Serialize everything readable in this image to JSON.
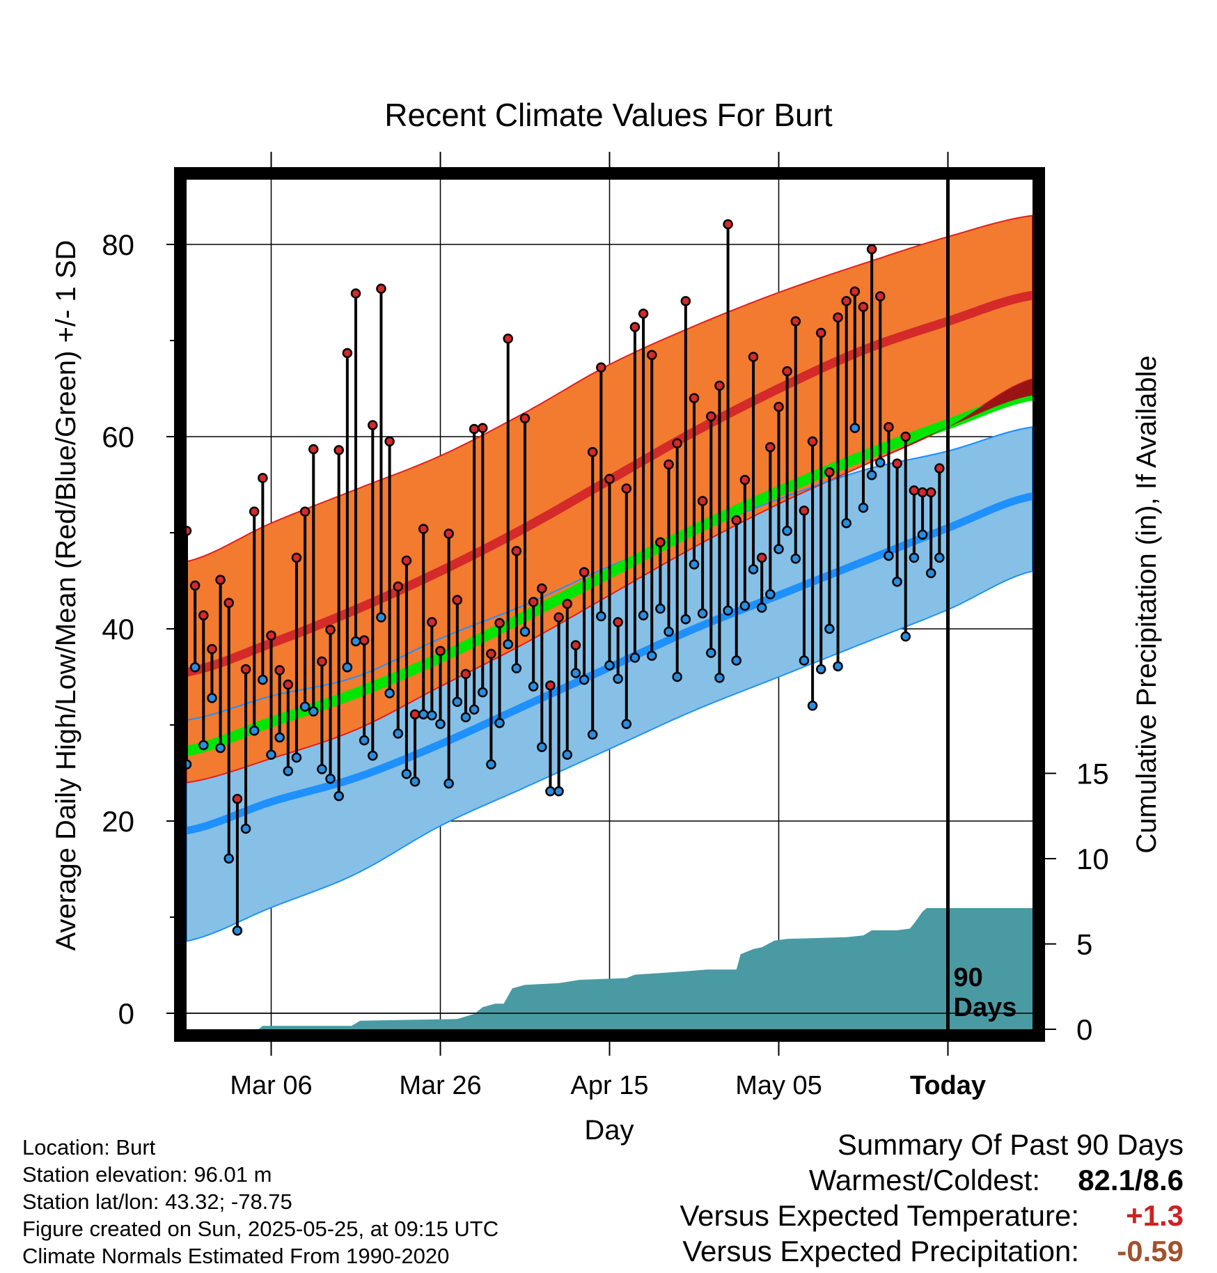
{
  "chart_data": {
    "type": "line",
    "title": "Recent Climate Values For Burt",
    "xlabel": "Day",
    "ylabel": "Average Daily High/Low/Mean (Red/Blue/Green) +/- 1 SD",
    "y2label": "Cumulative Precipitation (in), If Available",
    "x_range_days": [
      0,
      100
    ],
    "today_day": 90,
    "today_label_lines": [
      "90",
      "Days"
    ],
    "x_ticks": [
      {
        "day": 10,
        "label": "Mar 06"
      },
      {
        "day": 30,
        "label": "Mar 26"
      },
      {
        "day": 50,
        "label": "Apr 15"
      },
      {
        "day": 70,
        "label": "May 05"
      },
      {
        "day": 90,
        "label": "Today"
      }
    ],
    "ylim": [
      -1,
      87
    ],
    "y_ticks": [
      0,
      20,
      40,
      60,
      80
    ],
    "y_minor_ticks": [
      10,
      30,
      50,
      70
    ],
    "y2lim": [
      0,
      15
    ],
    "y2_ticks": [
      0,
      5,
      10,
      15
    ],
    "grid": true,
    "colors": {
      "high_band": "#f27b2f",
      "high_band_edge": "#e01f1f",
      "high_mean": "#d42a2a",
      "low_band": "#86c0e6",
      "low_band_edge": "#1e90ff",
      "low_mean": "#1e90ff",
      "mean": "#00e600",
      "mean_below_high": "#9a1416",
      "precip": "#4a9aa3",
      "high_point": "#d42a2a",
      "low_point": "#2a8ee0"
    },
    "normals": {
      "day": [
        0,
        10,
        20,
        30,
        40,
        50,
        60,
        70,
        80,
        90,
        100
      ],
      "high_mean": [
        35.5,
        38.5,
        42,
        46,
        50.5,
        55.5,
        60.5,
        65,
        69,
        72,
        74.7
      ],
      "high_upper": [
        47,
        51,
        54.5,
        58,
        62.5,
        67.5,
        71.5,
        75,
        78,
        80.8,
        83
      ],
      "high_lower": [
        24,
        26.5,
        29.5,
        34,
        38.5,
        43.5,
        48.5,
        53,
        57,
        61,
        66
      ],
      "low_mean": [
        19,
        22,
        24.5,
        28,
        32,
        36,
        40,
        43.5,
        47,
        50.5,
        53.8
      ],
      "low_upper": [
        30.5,
        33,
        35,
        39,
        42.5,
        46.5,
        50,
        53.5,
        56.5,
        58.5,
        61
      ],
      "low_lower": [
        7.5,
        11,
        14.5,
        19.5,
        23.5,
        27.5,
        31.5,
        35,
        38.5,
        42,
        46
      ],
      "mean": [
        27.3,
        30.3,
        33.3,
        37,
        41.3,
        45.8,
        50.3,
        54.3,
        58,
        61.3,
        64.3
      ]
    },
    "daily_high": [
      50.2,
      44.5,
      41.4,
      37.9,
      45.1,
      42.7,
      22.3,
      35.8,
      52.2,
      55.7,
      39.3,
      35.7,
      34.2,
      47.4,
      52.2,
      58.7,
      36.6,
      39.9,
      58.6,
      68.7,
      74.9,
      38.8,
      61.2,
      75.4,
      59.5,
      44.4,
      47.1,
      31.1,
      50.4,
      40.7,
      37.7,
      49.9,
      43.0,
      35.3,
      60.8,
      60.9,
      37.4,
      40.6,
      70.2,
      48.1,
      61.9,
      42.8,
      44.2,
      34.1,
      41.2,
      42.6,
      38.3,
      45.9,
      58.4,
      67.2,
      55.6,
      40.7,
      54.6,
      71.4,
      72.8,
      68.5,
      49.0,
      57.1,
      59.3,
      74.1,
      64.0,
      53.3,
      62.1,
      65.3,
      82.1,
      51.3,
      55.5,
      68.3,
      47.4,
      58.9,
      63.1,
      66.8,
      72.0,
      52.3,
      59.5,
      70.8,
      56.3,
      72.4,
      74.1,
      75.1,
      73.5,
      79.5,
      74.6,
      61.0,
      57.2,
      60.0,
      54.4,
      54.2,
      54.2,
      56.7
    ],
    "daily_low": [
      25.9,
      36.0,
      27.9,
      32.8,
      27.6,
      16.1,
      8.6,
      19.2,
      29.4,
      34.7,
      26.9,
      28.7,
      25.2,
      26.6,
      31.9,
      31.4,
      25.4,
      24.4,
      22.6,
      36.0,
      38.7,
      28.4,
      26.8,
      41.2,
      33.3,
      29.1,
      24.9,
      24.1,
      31.1,
      31.0,
      30.1,
      23.9,
      32.4,
      30.8,
      31.6,
      33.4,
      25.9,
      30.2,
      38.4,
      35.9,
      39.7,
      34.0,
      27.7,
      23.1,
      23.1,
      26.9,
      35.4,
      34.7,
      29.0,
      41.3,
      36.2,
      34.8,
      30.1,
      37.0,
      41.4,
      37.2,
      42.1,
      39.7,
      35.0,
      41.0,
      46.7,
      41.6,
      37.5,
      34.9,
      41.9,
      36.7,
      42.4,
      46.2,
      42.2,
      43.6,
      48.3,
      50.2,
      47.3,
      36.7,
      32.0,
      35.8,
      40.0,
      36.1,
      51.0,
      60.9,
      52.6,
      56.0,
      57.3,
      47.6,
      44.9,
      39.2,
      47.4,
      49.8,
      45.8,
      47.4
    ],
    "precip_cumulative": [
      [
        0,
        0
      ],
      [
        8.5,
        0
      ],
      [
        9,
        0.2
      ],
      [
        19.5,
        0.2
      ],
      [
        20.5,
        0.5
      ],
      [
        32,
        0.6
      ],
      [
        34,
        0.9
      ],
      [
        35,
        1.3
      ],
      [
        36.5,
        1.5
      ],
      [
        37.5,
        1.5
      ],
      [
        38.5,
        2.4
      ],
      [
        40,
        2.6
      ],
      [
        44,
        2.7
      ],
      [
        46.5,
        2.9
      ],
      [
        52,
        3.0
      ],
      [
        53,
        3.2
      ],
      [
        56,
        3.3
      ],
      [
        59,
        3.4
      ],
      [
        61.5,
        3.5
      ],
      [
        65,
        3.5
      ],
      [
        65.5,
        4.4
      ],
      [
        67,
        4.7
      ],
      [
        68,
        4.8
      ],
      [
        69.5,
        5.2
      ],
      [
        71,
        5.3
      ],
      [
        78,
        5.4
      ],
      [
        80,
        5.5
      ],
      [
        81,
        5.8
      ],
      [
        84,
        5.8
      ],
      [
        85.5,
        5.9
      ],
      [
        86,
        6.2
      ],
      [
        87,
        6.9
      ],
      [
        87.5,
        7.1
      ],
      [
        100,
        7.1
      ]
    ]
  },
  "footer_left": {
    "location": "Location: Burt",
    "elevation": "Station elevation: 96.01 m",
    "latlon": "Station lat/lon: 43.32; -78.75",
    "created": "Figure created on Sun, 2025-05-25, at 09:15 UTC",
    "normals": "Climate Normals Estimated From 1990-2020"
  },
  "summary": {
    "heading": "Summary Of Past 90 Days",
    "warmest_label": "Warmest/Coldest:",
    "warmest_value": "82.1/8.6",
    "temp_label": "Versus Expected Temperature:",
    "temp_value": "+1.3",
    "temp_color": "#cc2222",
    "precip_label": "Versus Expected Precipitation:",
    "precip_value": "-0.59",
    "precip_color": "#a0522d"
  }
}
